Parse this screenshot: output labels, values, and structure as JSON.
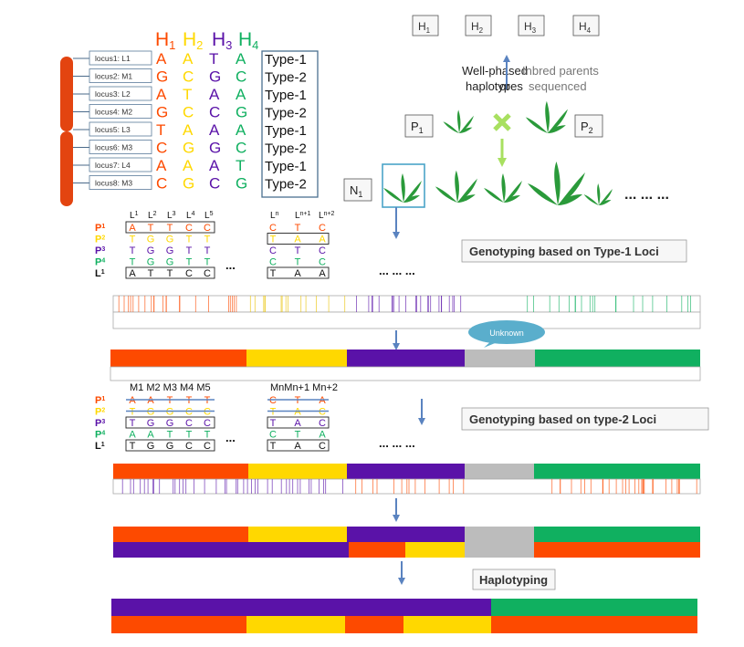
{
  "colors": {
    "red": "#fd4a00",
    "yellow": "#ffd800",
    "purple": "#5a12a8",
    "green": "#10b060",
    "gray": "#bcbcbc",
    "arrow": "#5a83c0",
    "box": "#4aa4c8",
    "chromo": "#e34410",
    "cross": "#a8e060",
    "plant": "#2a9a3a"
  },
  "header_haps": [
    "H",
    "H",
    "H",
    "H"
  ],
  "header_subs": [
    "1",
    "2",
    "3",
    "4"
  ],
  "loci": [
    {
      "label": "locus1:  L1",
      "bases": [
        "A",
        "A",
        "T",
        "A"
      ],
      "type": "Type-1"
    },
    {
      "label": "locus2:  M1",
      "bases": [
        "G",
        "C",
        "G",
        "C"
      ],
      "type": "Type-2"
    },
    {
      "label": "locus3:  L2",
      "bases": [
        "A",
        "T",
        "A",
        "A"
      ],
      "type": "Type-1"
    },
    {
      "label": "locus4:  M2",
      "bases": [
        "G",
        "C",
        "C",
        "G"
      ],
      "type": "Type-2"
    },
    {
      "label": "locus5:  L3",
      "bases": [
        "T",
        "A",
        "A",
        "A"
      ],
      "type": "Type-1"
    },
    {
      "label": "locus6:  M3",
      "bases": [
        "C",
        "G",
        "G",
        "C"
      ],
      "type": "Type-2"
    },
    {
      "label": "locus7:  L4",
      "bases": [
        "A",
        "A",
        "A",
        "T"
      ],
      "type": "Type-1"
    },
    {
      "label": "locus8:  M3",
      "bases": [
        "C",
        "G",
        "C",
        "G"
      ],
      "type": "Type-2"
    }
  ],
  "top_right": {
    "h_boxes": [
      {
        "h": "H",
        "s": "1"
      },
      {
        "h": "H",
        "s": "2"
      },
      {
        "h": "H",
        "s": "3"
      },
      {
        "h": "H",
        "s": "4"
      }
    ],
    "well_phased_1": "Well-phased",
    "well_phased_2": "haplotypes",
    "or_text": "or",
    "inbred_1": "Inbred parents",
    "inbred_2": "sequenced",
    "p1": {
      "h": "P",
      "s": "1"
    },
    "p2": {
      "h": "P",
      "s": "2"
    },
    "n1": {
      "h": "N",
      "s": "1"
    },
    "dots": "... ... ..."
  },
  "type1": {
    "col_heads": [
      {
        "h": "L",
        "s": "1"
      },
      {
        "h": "L",
        "s": "2"
      },
      {
        "h": "L",
        "s": "3"
      },
      {
        "h": "L",
        "s": "4"
      },
      {
        "h": "L",
        "s": "5"
      }
    ],
    "col_heads2": [
      {
        "h": "L",
        "s": "n"
      },
      {
        "h": "L",
        "s": "n+1"
      },
      {
        "h": "L",
        "s": "n+2"
      }
    ],
    "rows": [
      {
        "name": "P",
        "sub": "1",
        "a": [
          "A",
          "T",
          "T",
          "C",
          "C"
        ],
        "b": [
          "C",
          "T",
          "C"
        ]
      },
      {
        "name": "P",
        "sub": "2",
        "a": [
          "T",
          "G",
          "G",
          "T",
          "T"
        ],
        "b": [
          "T",
          "A",
          "A"
        ]
      },
      {
        "name": "P",
        "sub": "3",
        "a": [
          "T",
          "G",
          "G",
          "T",
          "T"
        ],
        "b": [
          "C",
          "T",
          "C"
        ]
      },
      {
        "name": "P",
        "sub": "4",
        "a": [
          "T",
          "G",
          "G",
          "T",
          "T"
        ],
        "b": [
          "C",
          "T",
          "C"
        ]
      },
      {
        "name": "L",
        "sub": "1",
        "a": [
          "A",
          "T",
          "T",
          "C",
          "C"
        ],
        "b": [
          "T",
          "A",
          "A"
        ]
      }
    ],
    "ellipsis": "...",
    "ellipsis_long": "... ... ...",
    "title": "Genotyping based on Type-1 Loci"
  },
  "unknown": "Unknown",
  "type2": {
    "col_heads": "M1 M2 M3 M4 M5",
    "col_heads2": "MnMn+1 Mn+2",
    "rows": [
      {
        "name": "P",
        "sub": "1",
        "a": [
          "A",
          "A",
          "T",
          "T",
          "T"
        ],
        "b": [
          "C",
          "T",
          "A"
        ]
      },
      {
        "name": "P",
        "sub": "2",
        "a": [
          "T",
          "G",
          "G",
          "C",
          "C"
        ],
        "b": [
          "T",
          "A",
          "C"
        ]
      },
      {
        "name": "P",
        "sub": "3",
        "a": [
          "T",
          "G",
          "G",
          "C",
          "C"
        ],
        "b": [
          "T",
          "A",
          "C"
        ]
      },
      {
        "name": "P",
        "sub": "4",
        "a": [
          "A",
          "A",
          "T",
          "T",
          "T"
        ],
        "b": [
          "C",
          "T",
          "A"
        ]
      },
      {
        "name": "L",
        "sub": "1",
        "a": [
          "T",
          "G",
          "G",
          "C",
          "C"
        ],
        "b": [
          "T",
          "A",
          "C"
        ]
      }
    ],
    "ellipsis": "...",
    "ellipsis_long": "... ... ...",
    "title": "Genotyping based on type-2 Loci"
  },
  "haplotyping": "Haplotyping"
}
